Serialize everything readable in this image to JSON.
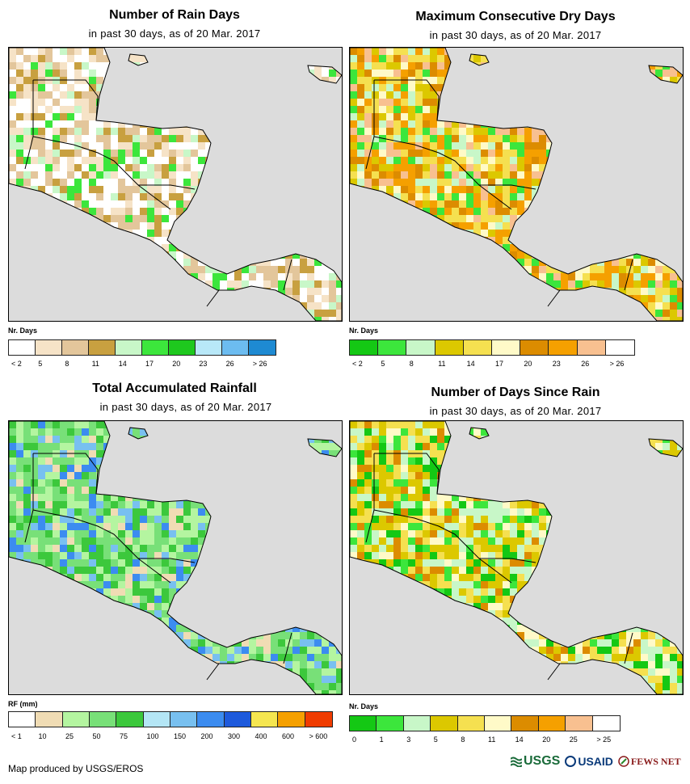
{
  "panels": [
    {
      "id": "rain-days",
      "title": "Number of Rain Days",
      "subtitle": "in past 30 days, as of 20 Mar. 2017",
      "legend_title": "Nr. Days",
      "legend_colors": [
        "#ffffff",
        "#f6e3c7",
        "#e3c69b",
        "#c8a040",
        "#c8f7c8",
        "#3ce63c",
        "#1ec81e",
        "#b8e8f8",
        "#6cbcf0",
        "#1e8ad2"
      ],
      "legend_labels": [
        "< 2",
        "5",
        "8",
        "11",
        "14",
        "17",
        "20",
        "23",
        "26",
        "> 26"
      ],
      "map_palette": [
        "#ffffff",
        "#ffffff",
        "#ffffff",
        "#f6e3c7",
        "#f6e3c7",
        "#e3c69b",
        "#e3c69b",
        "#c8a040",
        "#c8f7c8",
        "#3ce63c"
      ]
    },
    {
      "id": "max-dry-days",
      "title": "Maximum Consecutive Dry Days",
      "subtitle": "in past 30 days, as of 20 Mar. 2017",
      "legend_title": "Nr. Days",
      "legend_colors": [
        "#14c814",
        "#3ce63c",
        "#c8f7c8",
        "#dcc800",
        "#f5e050",
        "#fffac8",
        "#dc8c00",
        "#f5a000",
        "#f8c090",
        "#ffffff"
      ],
      "legend_labels": [
        "< 2",
        "5",
        "8",
        "11",
        "14",
        "17",
        "20",
        "23",
        "26",
        "> 26"
      ],
      "map_palette": [
        "#f5e050",
        "#f5e050",
        "#dcc800",
        "#dc8c00",
        "#f5a000",
        "#f5a000",
        "#f8c090",
        "#fffac8",
        "#c8f7c8",
        "#3ce63c"
      ]
    },
    {
      "id": "total-rainfall",
      "title": "Total Accumulated Rainfall",
      "subtitle": "in past 30 days, as of 20 Mar. 2017",
      "legend_title": "RF (mm)",
      "legend_colors": [
        "#ffffff",
        "#f0dcb4",
        "#b4f5a0",
        "#78e078",
        "#3cc83c",
        "#b4e6f5",
        "#78c0f0",
        "#3c8cf0",
        "#1e5adc",
        "#f5e650",
        "#f5a000",
        "#f03c00"
      ],
      "legend_labels": [
        "< 1",
        "10",
        "25",
        "50",
        "75",
        "100",
        "150",
        "200",
        "300",
        "400",
        "600",
        "> 600"
      ],
      "map_palette": [
        "#78e078",
        "#78e078",
        "#3cc83c",
        "#b4f5a0",
        "#b4f5a0",
        "#f0dcb4",
        "#78e078",
        "#3cc83c",
        "#78c0f0",
        "#3c8cf0"
      ]
    },
    {
      "id": "days-since-rain",
      "title": "Number of Days Since Rain",
      "subtitle": "in past 30 days, as of 20 Mar. 2017",
      "legend_title": "Nr. Days",
      "legend_colors": [
        "#14c814",
        "#3ce63c",
        "#c8f7c8",
        "#dcc800",
        "#f5e050",
        "#fffac8",
        "#dc8c00",
        "#f5a000",
        "#f8c090",
        "#ffffff"
      ],
      "legend_labels": [
        "0",
        "1",
        "3",
        "5",
        "8",
        "11",
        "14",
        "20",
        "25",
        "> 25"
      ],
      "map_palette": [
        "#dcc800",
        "#dcc800",
        "#f5e050",
        "#f5e050",
        "#c8f7c8",
        "#3ce63c",
        "#14c814",
        "#dc8c00",
        "#fffac8",
        "#c8f7c8"
      ]
    }
  ],
  "footer": "Map produced by USGS/EROS",
  "logos": {
    "usgs": "USGS",
    "usaid": "USAID",
    "fews": "FEWS NET"
  }
}
